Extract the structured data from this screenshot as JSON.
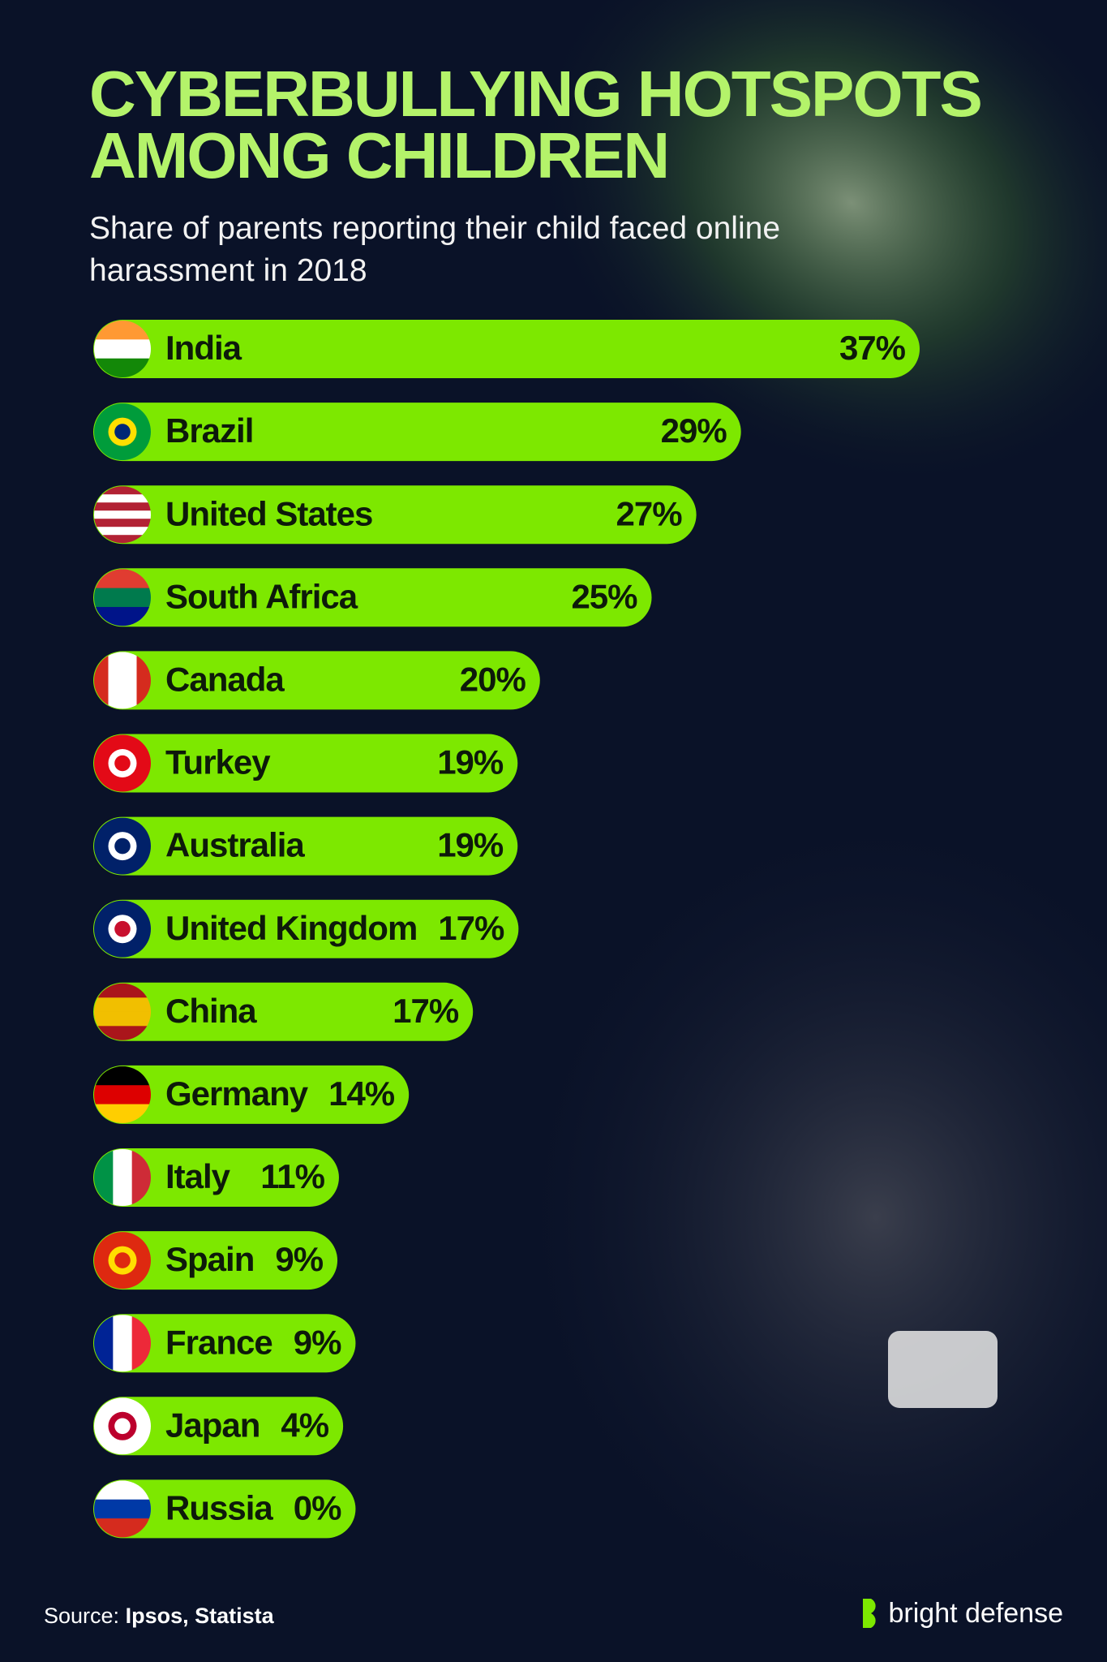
{
  "chart_data": {
    "type": "bar",
    "title": "CYBERBULLYING HOTSPOTS AMONG CHILDREN",
    "subtitle": "Share of parents reporting their child faced online harassment in 2018",
    "categories": [
      "India",
      "Brazil",
      "United States",
      "South Africa",
      "Canada",
      "Turkey",
      "Australia",
      "United Kingdom",
      "China",
      "Germany",
      "Italy",
      "Spain",
      "France",
      "Japan",
      "Russia"
    ],
    "values": [
      37,
      29,
      27,
      25,
      20,
      19,
      19,
      17,
      17,
      14,
      11,
      9,
      9,
      4,
      0
    ],
    "value_labels": [
      "37%",
      "29%",
      "27%",
      "25%",
      "20%",
      "19%",
      "19%",
      "17%",
      "17%",
      "14%",
      "11%",
      "9%",
      "9%",
      "4%",
      "0%"
    ],
    "color": "#7de800",
    "source_label": "Source:",
    "source": "Ipsos, Statista",
    "brand": "bright defense"
  }
}
